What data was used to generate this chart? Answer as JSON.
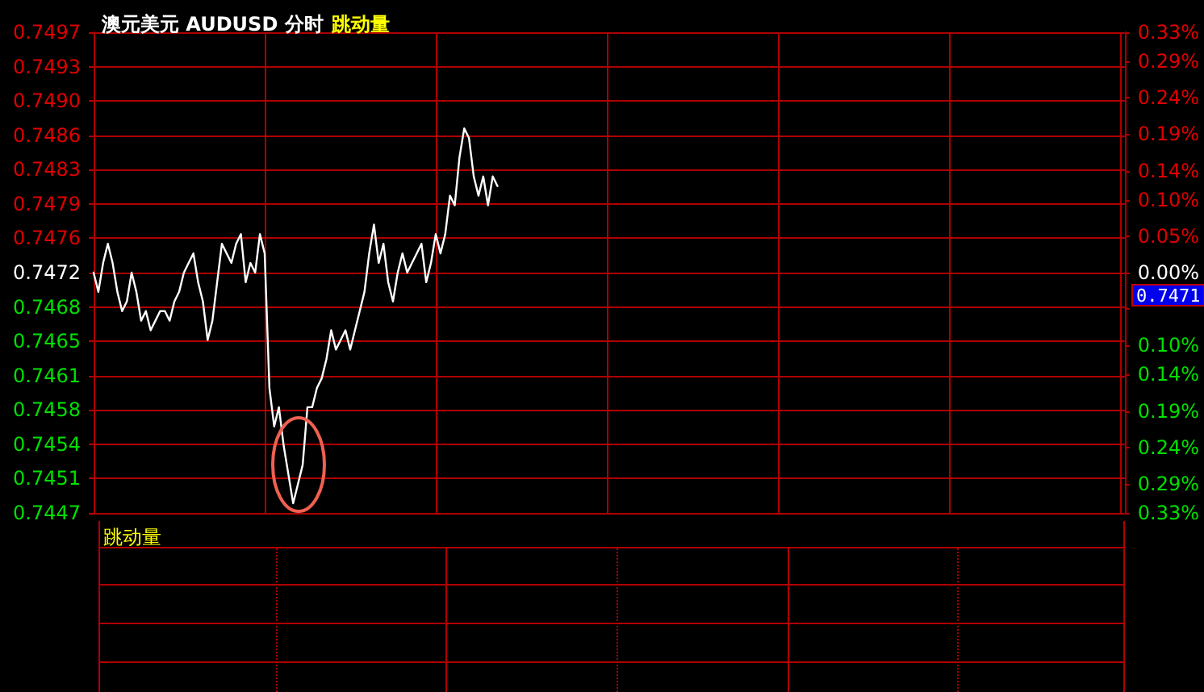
{
  "chart_data": [
    {
      "type": "line",
      "title": "澳元美元 AUDUSD 分时",
      "subtitle": "跳动量",
      "categories": [
        null,
        null,
        null,
        null,
        null,
        null,
        null,
        null,
        null,
        null,
        null,
        null,
        null,
        null,
        null,
        null,
        null,
        null,
        null,
        null,
        null,
        null,
        null,
        null,
        null,
        null,
        null,
        null,
        null,
        null,
        null,
        null,
        null,
        null,
        null,
        null,
        null,
        null,
        null,
        null,
        null,
        null,
        null,
        null,
        null,
        null,
        null,
        null,
        null,
        null,
        null,
        null,
        null,
        null,
        null,
        null,
        null,
        null,
        null,
        null,
        null,
        null,
        null,
        null,
        null,
        null,
        null,
        null,
        null,
        null,
        null,
        null,
        null,
        null,
        null,
        null,
        null,
        null,
        null,
        null,
        null,
        null,
        null,
        null,
        null,
        null,
        null,
        null,
        null,
        null,
        null,
        null,
        null,
        null,
        null,
        null,
        null,
        null,
        null,
        null,
        null,
        null,
        null,
        null,
        null,
        null,
        null,
        null,
        null,
        null,
        null,
        null,
        null,
        null,
        null,
        null,
        null,
        null,
        null,
        null,
        null,
        null,
        null,
        null,
        null,
        null,
        null,
        null,
        null,
        null,
        null,
        null,
        null,
        null,
        null,
        null,
        null,
        null,
        null,
        null,
        null,
        null,
        null,
        null,
        null,
        null,
        null,
        null,
        null,
        null,
        null,
        null,
        null,
        null,
        null,
        null,
        null,
        null,
        null,
        null,
        null,
        null,
        null,
        null,
        null,
        null,
        null,
        null,
        null,
        null,
        null,
        null,
        null,
        null,
        null,
        null,
        null,
        null,
        null,
        null,
        null,
        null,
        null,
        null,
        null,
        null,
        null,
        null,
        null,
        null,
        null,
        null,
        null,
        null,
        null,
        null,
        null,
        null,
        null,
        null,
        null,
        null,
        null,
        null,
        null,
        null,
        null,
        null,
        null,
        null,
        null,
        null,
        null,
        null,
        null,
        null,
        null,
        null
      ],
      "series": [
        {
          "color": "#ffffff",
          "values": [
            0.7472,
            0.747,
            0.7473,
            0.7475,
            0.7473,
            0.747,
            0.7468,
            0.7469,
            0.7472,
            0.747,
            0.7467,
            0.7468,
            0.7466,
            0.7467,
            0.7468,
            0.7468,
            0.7467,
            0.7469,
            0.747,
            0.7472,
            0.7473,
            0.7474,
            0.7471,
            0.7469,
            0.7465,
            0.7467,
            0.7471,
            0.7475,
            0.7474,
            0.7473,
            0.7475,
            0.7476,
            0.7471,
            0.7473,
            0.7472,
            0.7476,
            0.7474,
            0.746,
            0.7456,
            0.7458,
            0.7454,
            0.7451,
            0.7448,
            0.745,
            0.7452,
            0.7458,
            0.7458,
            0.746,
            0.7461,
            0.7463,
            0.7466,
            0.7464,
            0.7465,
            0.7466,
            0.7464,
            0.7466,
            0.7468,
            0.747,
            0.7474,
            0.7477,
            0.7473,
            0.7475,
            0.7471,
            0.7469,
            0.7472,
            0.7474,
            0.7472,
            0.7473,
            0.7474,
            0.7475,
            0.7471,
            0.7473,
            0.7476,
            0.7474,
            0.7476,
            0.748,
            0.7479,
            0.7484,
            0.7487,
            0.7486,
            0.7482,
            0.748,
            0.7482,
            0.7479,
            0.7482,
            0.7481,
            null,
            null,
            null,
            null,
            null,
            null,
            null,
            null,
            null,
            null,
            null,
            null,
            null,
            null,
            null,
            null,
            null,
            null,
            null,
            null,
            null,
            null,
            null,
            null,
            null,
            null,
            null,
            null,
            null,
            null,
            null,
            null,
            null,
            null,
            null,
            null,
            null,
            null,
            null,
            null,
            null,
            null,
            null,
            null,
            null,
            null,
            null,
            null,
            null,
            null,
            null,
            null,
            null,
            null,
            null,
            null,
            null,
            null,
            null,
            null,
            null,
            null,
            null,
            null,
            null,
            null,
            null,
            null,
            null,
            null,
            null,
            null,
            null,
            null,
            null,
            null,
            null,
            null,
            null,
            null,
            null,
            null,
            null,
            null,
            null,
            null,
            null,
            null,
            null,
            null,
            null,
            null,
            null,
            null,
            null,
            null,
            null,
            null,
            null,
            null,
            null,
            null,
            null,
            null,
            null,
            null,
            null,
            null,
            null,
            null,
            null,
            null,
            null,
            null,
            null,
            null,
            null,
            null,
            null,
            null,
            null,
            null,
            null,
            null,
            null,
            null,
            null,
            null,
            null,
            null,
            null,
            null
          ]
        }
      ],
      "ylim": [
        0.7447,
        0.7497
      ],
      "yticks": [
        {
          "value": 0.7447,
          "label": "0.7447"
        },
        {
          "value": 0.745057,
          "label": "0.7451"
        },
        {
          "value": 0.745414,
          "label": "0.7454"
        },
        {
          "value": 0.745771,
          "label": "0.7458"
        },
        {
          "value": 0.746129,
          "label": "0.7461"
        },
        {
          "value": 0.746486,
          "label": "0.7465"
        },
        {
          "value": 0.746843,
          "label": "0.7468"
        },
        {
          "value": 0.7472,
          "label": "0.7472"
        },
        {
          "value": 0.747557,
          "label": "0.7476"
        },
        {
          "value": 0.747914,
          "label": "0.7479"
        },
        {
          "value": 0.748271,
          "label": "0.7483"
        },
        {
          "value": 0.748629,
          "label": "0.7486"
        },
        {
          "value": 0.748986,
          "label": "0.7490"
        },
        {
          "value": 0.749343,
          "label": "0.7493"
        },
        {
          "value": 0.7497,
          "label": "0.7497"
        }
      ],
      "y2lim": [
        -0.33,
        0.33
      ],
      "y2ticks": [
        {
          "value": -0.33,
          "label": "0.33%"
        },
        {
          "value": -0.29,
          "label": "0.29%"
        },
        {
          "value": -0.24,
          "label": "0.24%"
        },
        {
          "value": -0.19,
          "label": "0.19%"
        },
        {
          "value": -0.14,
          "label": "0.14%"
        },
        {
          "value": -0.1,
          "label": "0.10%"
        },
        {
          "value": -0.05,
          "label": null
        },
        {
          "value": 0,
          "label": "0.00%"
        },
        {
          "value": 0.05,
          "label": "0.05%"
        },
        {
          "value": 0.1,
          "label": "0.10%"
        },
        {
          "value": 0.14,
          "label": "0.14%"
        },
        {
          "value": 0.19,
          "label": "0.19%"
        },
        {
          "value": 0.24,
          "label": "0.24%"
        },
        {
          "value": 0.29,
          "label": "0.29%"
        },
        {
          "value": 0.33,
          "label": "0.33%"
        }
      ],
      "annotations": [
        "0.7471"
      ],
      "grid": true,
      "line_style": "solid"
    },
    {
      "type": "other",
      "title": "跳动量"
    }
  ]
}
